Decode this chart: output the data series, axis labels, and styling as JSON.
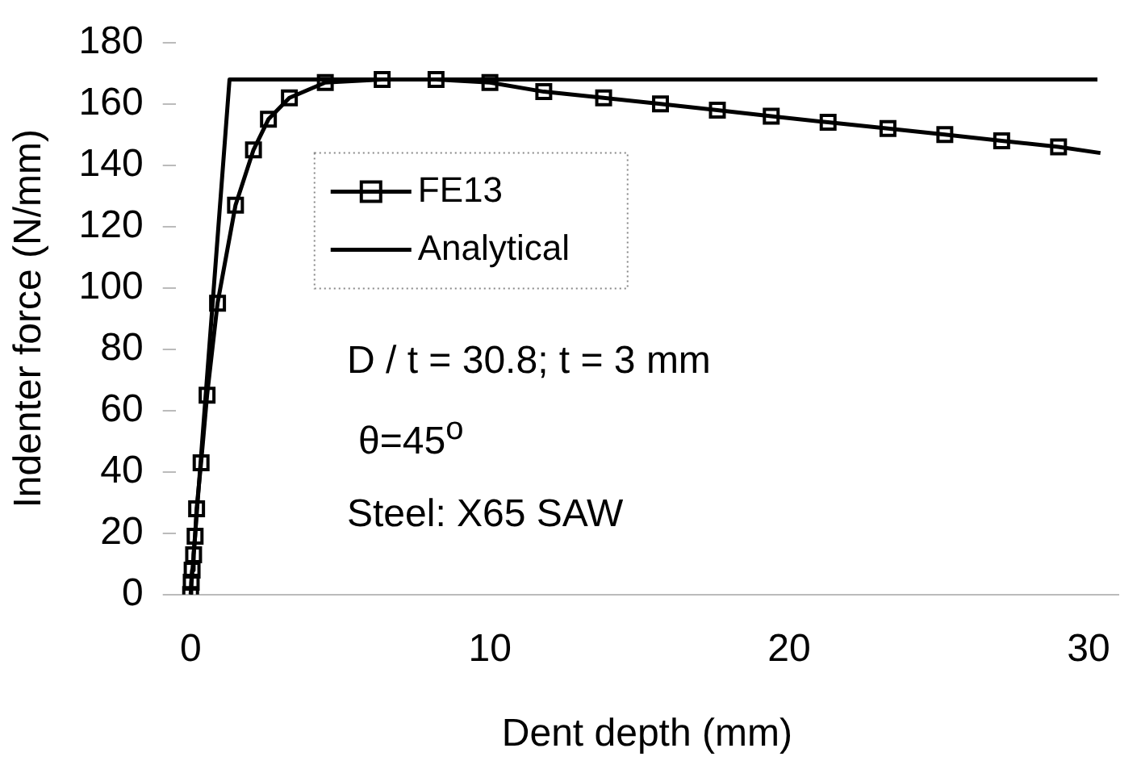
{
  "chart_data": {
    "type": "line",
    "xlabel": "Dent depth (mm)",
    "ylabel": "Indenter force (N/mm)",
    "xlim": [
      -0.5,
      31
    ],
    "xticks": [
      0,
      10,
      20,
      30
    ],
    "ylim": [
      0,
      180
    ],
    "yticks": [
      0,
      20,
      40,
      60,
      80,
      100,
      120,
      140,
      160,
      180
    ],
    "grid": false,
    "legend": "top left",
    "line_style": "solid",
    "series": [
      {
        "name": "FE13",
        "color": "#000000",
        "marker": "square",
        "x": [
          0,
          0.02,
          0.05,
          0.1,
          0.15,
          0.2,
          0.35,
          0.55,
          0.9,
          1.5,
          2.1,
          2.6,
          3.3,
          4.5,
          6.4,
          8.2,
          10,
          11.8,
          13.8,
          15.7,
          17.6,
          19.4,
          21.3,
          23.3,
          25.2,
          27.1,
          29,
          30.4
        ],
        "values": [
          0,
          4,
          8,
          13,
          19,
          28,
          43,
          65,
          95,
          127,
          145,
          155,
          162,
          167,
          168,
          168,
          167,
          164,
          162,
          160,
          158,
          156,
          154,
          152,
          150,
          148,
          146,
          144
        ]
      },
      {
        "name": "Analytical",
        "color": "#000000",
        "marker": "none",
        "x": [
          0,
          1.3,
          30.3
        ],
        "values": [
          0,
          168,
          168
        ]
      }
    ],
    "annotations": [
      "D / t = 30.8; t = 3 mm",
      "θ=45$^{o}$",
      "Steel: X65 SAW"
    ]
  }
}
